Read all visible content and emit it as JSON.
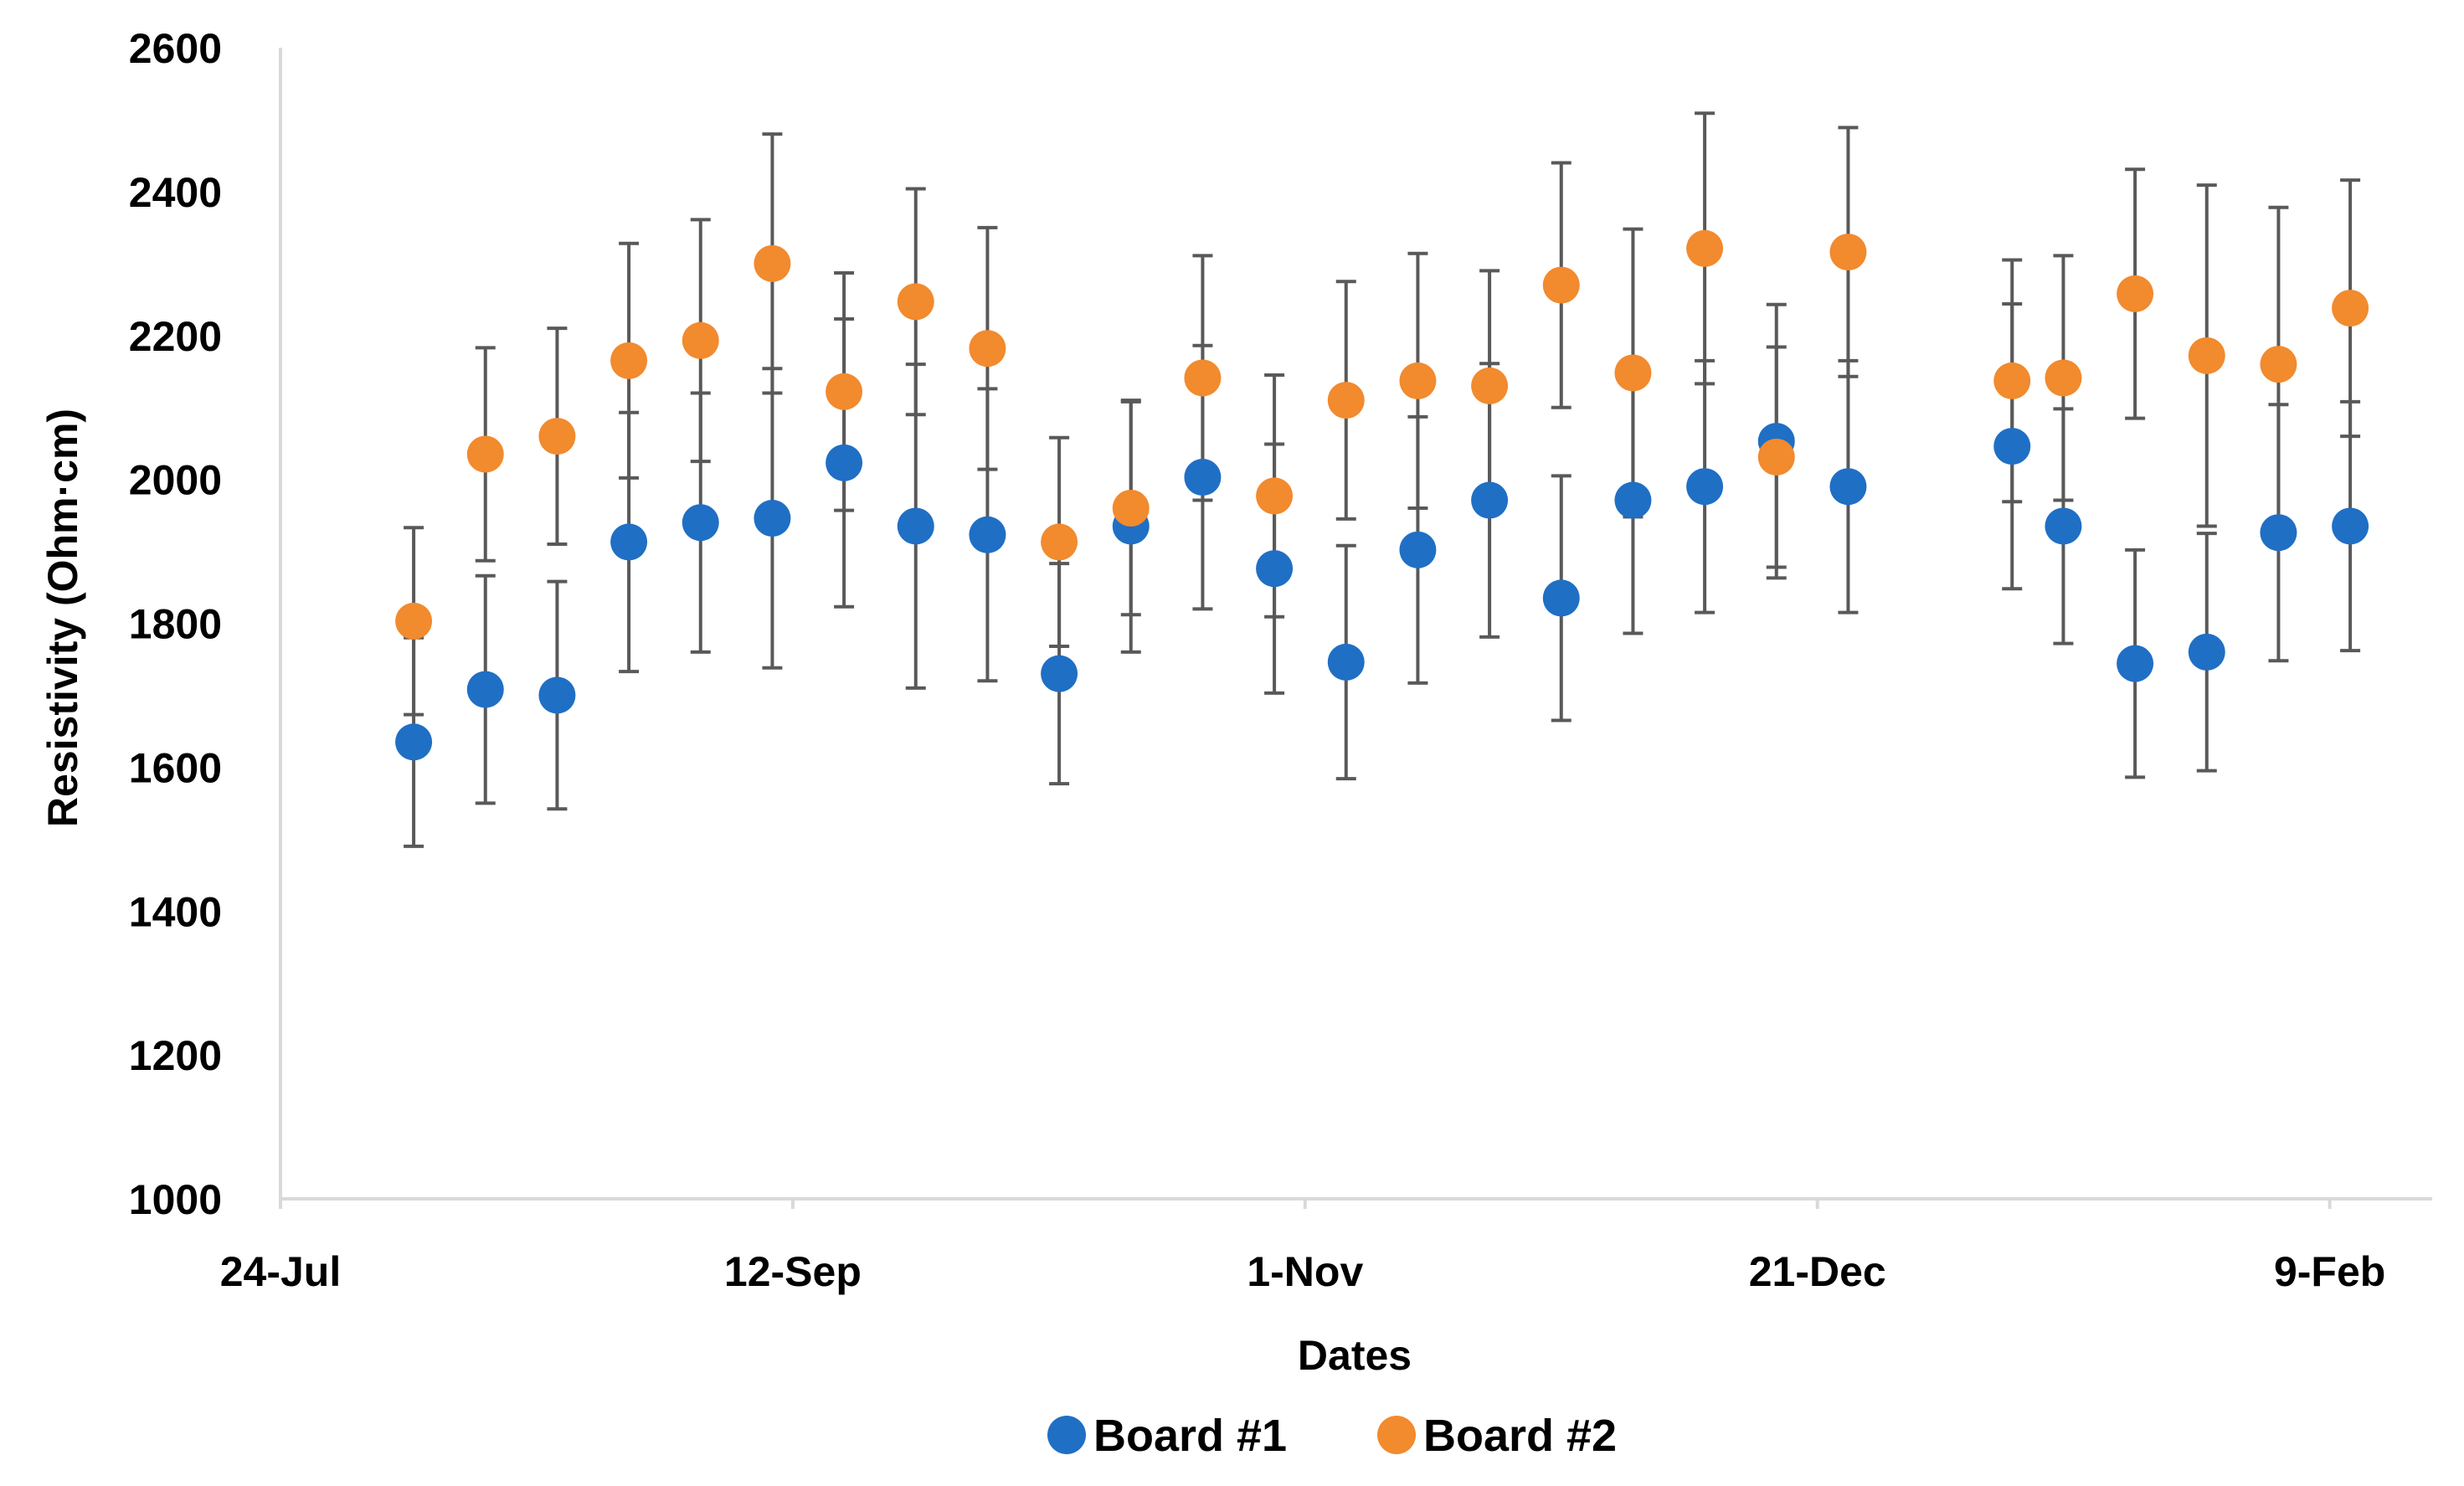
{
  "chart_data": {
    "type": "scatter",
    "title": "",
    "xlabel": "Dates",
    "ylabel": "Resistivity (Ohm·cm)",
    "ylim": [
      1000,
      2600
    ],
    "xlim_days": [
      0,
      210
    ],
    "x_ticks": [
      {
        "day": 0,
        "label": "24-Jul"
      },
      {
        "day": 50,
        "label": "12-Sep"
      },
      {
        "day": 100,
        "label": "1-Nov"
      },
      {
        "day": 150,
        "label": "21-Dec"
      },
      {
        "day": 200,
        "label": "9-Feb"
      }
    ],
    "y_ticks": [
      1000,
      1200,
      1400,
      1600,
      1800,
      2000,
      2200,
      2400,
      2600
    ],
    "grid": false,
    "legend_position": "bottom",
    "series": [
      {
        "name": "Board #1",
        "color": "#1f6fc5",
        "points": [
          {
            "day": 13,
            "y": 1635,
            "err": 145
          },
          {
            "day": 20,
            "y": 1708,
            "err": 158
          },
          {
            "day": 27,
            "y": 1700,
            "err": 158
          },
          {
            "day": 34,
            "y": 1913,
            "err": 180
          },
          {
            "day": 41,
            "y": 1940,
            "err": 180
          },
          {
            "day": 48,
            "y": 1946,
            "err": 208
          },
          {
            "day": 55,
            "y": 2023,
            "err": 200
          },
          {
            "day": 62,
            "y": 1935,
            "err": 225
          },
          {
            "day": 69,
            "y": 1923,
            "err": 203
          },
          {
            "day": 76,
            "y": 1730,
            "err": 153
          },
          {
            "day": 83,
            "y": 1935,
            "err": 175
          },
          {
            "day": 90,
            "y": 2003,
            "err": 183
          },
          {
            "day": 97,
            "y": 1876,
            "err": 173
          },
          {
            "day": 104,
            "y": 1746,
            "err": 162
          },
          {
            "day": 111,
            "y": 1902,
            "err": 185
          },
          {
            "day": 118,
            "y": 1971,
            "err": 190
          },
          {
            "day": 125,
            "y": 1835,
            "err": 170
          },
          {
            "day": 132,
            "y": 1971,
            "err": 185
          },
          {
            "day": 139,
            "y": 1990,
            "err": 175
          },
          {
            "day": 146,
            "y": 2053,
            "err": 190
          },
          {
            "day": 153,
            "y": 1990,
            "err": 175
          },
          {
            "day": 169,
            "y": 2046,
            "err": 198
          },
          {
            "day": 174,
            "y": 1935,
            "err": 163
          },
          {
            "day": 181,
            "y": 1744,
            "err": 158
          },
          {
            "day": 188,
            "y": 1760,
            "err": 165
          },
          {
            "day": 195,
            "y": 1926,
            "err": 178
          },
          {
            "day": 202,
            "y": 1935,
            "err": 173
          }
        ]
      },
      {
        "name": "Board #2",
        "color": "#f28a2e",
        "points": [
          {
            "day": 13,
            "y": 1803,
            "err": 130
          },
          {
            "day": 20,
            "y": 2035,
            "err": 148
          },
          {
            "day": 27,
            "y": 2060,
            "err": 150
          },
          {
            "day": 34,
            "y": 2165,
            "err": 163
          },
          {
            "day": 41,
            "y": 2193,
            "err": 168
          },
          {
            "day": 48,
            "y": 2300,
            "err": 180
          },
          {
            "day": 55,
            "y": 2122,
            "err": 165
          },
          {
            "day": 62,
            "y": 2247,
            "err": 157
          },
          {
            "day": 69,
            "y": 2182,
            "err": 168
          },
          {
            "day": 76,
            "y": 1913,
            "err": 145
          },
          {
            "day": 83,
            "y": 1960,
            "err": 148
          },
          {
            "day": 90,
            "y": 2141,
            "err": 170
          },
          {
            "day": 97,
            "y": 1977,
            "err": 168
          },
          {
            "day": 104,
            "y": 2110,
            "err": 165
          },
          {
            "day": 111,
            "y": 2137,
            "err": 177
          },
          {
            "day": 118,
            "y": 2130,
            "err": 160
          },
          {
            "day": 125,
            "y": 2270,
            "err": 170
          },
          {
            "day": 132,
            "y": 2148,
            "err": 200
          },
          {
            "day": 139,
            "y": 2321,
            "err": 188
          },
          {
            "day": 146,
            "y": 2031,
            "err": 153
          },
          {
            "day": 153,
            "y": 2316,
            "err": 173
          },
          {
            "day": 169,
            "y": 2137,
            "err": 168
          },
          {
            "day": 174,
            "y": 2141,
            "err": 170
          },
          {
            "day": 181,
            "y": 2258,
            "err": 173
          },
          {
            "day": 188,
            "y": 2172,
            "err": 237
          },
          {
            "day": 195,
            "y": 2160,
            "err": 218
          },
          {
            "day": 202,
            "y": 2238,
            "err": 178
          }
        ]
      }
    ]
  }
}
